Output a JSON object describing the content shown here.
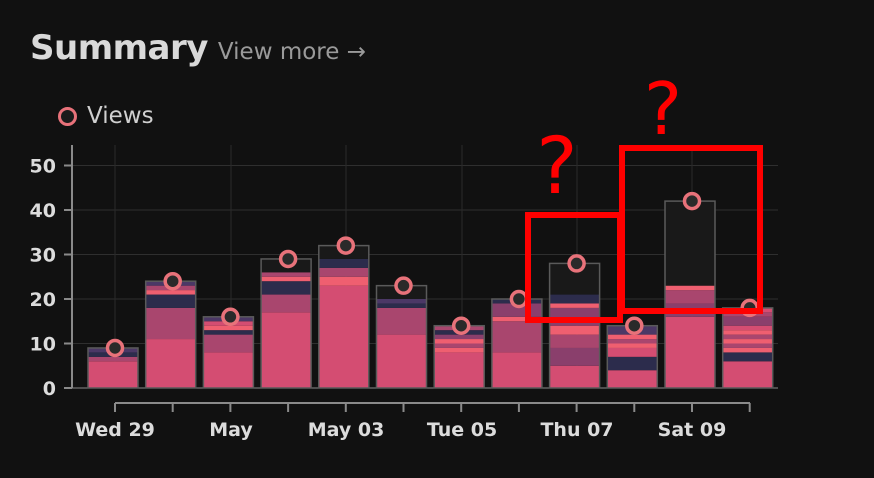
{
  "header": {
    "title": "Summary",
    "more_label": "View more →"
  },
  "legend": {
    "label": "Views"
  },
  "colors": {
    "marker": "#e8727a",
    "background": "#111111",
    "annotation": "#ff0000",
    "segments": [
      "#d44d72",
      "#a9466e",
      "#8a3f6c",
      "#ef5f70",
      "#2c2c4c",
      "#4b3866",
      "#191919"
    ]
  },
  "annotation": {
    "mark_1": "?",
    "mark_2": "?"
  },
  "chart_data": {
    "type": "bar",
    "title": "",
    "xlabel": "",
    "ylabel": "",
    "ylim": [
      0,
      55
    ],
    "yticks": [
      0,
      10,
      20,
      30,
      40,
      50
    ],
    "xtick_labels": [
      "Wed 29",
      "May",
      "May 03",
      "Tue 05",
      "Thu 07",
      "Sat 09"
    ],
    "grid": true,
    "series": [
      {
        "name": "Views",
        "values": [
          9,
          24,
          16,
          29,
          32,
          23,
          14,
          20,
          28,
          14,
          42,
          18
        ]
      }
    ],
    "bar_segments": [
      [
        [
          6,
          0
        ],
        [
          1,
          1
        ],
        [
          1,
          4
        ],
        [
          1,
          5
        ]
      ],
      [
        [
          11,
          0
        ],
        [
          7,
          1
        ],
        [
          3,
          4
        ],
        [
          1,
          3
        ],
        [
          1,
          1
        ],
        [
          1,
          5
        ]
      ],
      [
        [
          8,
          0
        ],
        [
          4,
          1
        ],
        [
          1,
          4
        ],
        [
          1,
          3
        ],
        [
          1,
          0
        ],
        [
          1,
          5
        ]
      ],
      [
        [
          17,
          0
        ],
        [
          4,
          1
        ],
        [
          3,
          4
        ],
        [
          1,
          3
        ],
        [
          1,
          1
        ],
        [
          3,
          6
        ]
      ],
      [
        [
          23,
          0
        ],
        [
          2,
          3
        ],
        [
          2,
          1
        ],
        [
          2,
          4
        ],
        [
          3,
          6
        ]
      ],
      [
        [
          12,
          0
        ],
        [
          6,
          1
        ],
        [
          1,
          4
        ],
        [
          1,
          5
        ],
        [
          3,
          6
        ]
      ],
      [
        [
          8,
          0
        ],
        [
          1,
          3
        ],
        [
          1,
          1
        ],
        [
          1,
          3
        ],
        [
          1,
          2
        ],
        [
          1,
          4
        ],
        [
          1,
          1
        ]
      ],
      [
        [
          8,
          0
        ],
        [
          7,
          1
        ],
        [
          1,
          3
        ],
        [
          3,
          2
        ],
        [
          1,
          4
        ]
      ],
      [
        [
          5,
          0
        ],
        [
          4,
          2
        ],
        [
          3,
          1
        ],
        [
          2,
          3
        ],
        [
          4,
          2
        ],
        [
          1,
          3
        ],
        [
          2,
          4
        ],
        [
          7,
          6
        ]
      ],
      [
        [
          4,
          0
        ],
        [
          3,
          4
        ],
        [
          2,
          0
        ],
        [
          1,
          3
        ],
        [
          1,
          1
        ],
        [
          1,
          3
        ],
        [
          2,
          5
        ]
      ],
      [
        [
          16,
          0
        ],
        [
          3,
          2
        ],
        [
          3,
          1
        ],
        [
          1,
          3
        ],
        [
          19,
          6
        ]
      ],
      [
        [
          6,
          0
        ],
        [
          2,
          4
        ],
        [
          1,
          3
        ],
        [
          1,
          1
        ],
        [
          1,
          3
        ],
        [
          1,
          1
        ],
        [
          1,
          3
        ],
        [
          1,
          0
        ],
        [
          2,
          2
        ],
        [
          1,
          1
        ],
        [
          1,
          0
        ]
      ]
    ]
  }
}
